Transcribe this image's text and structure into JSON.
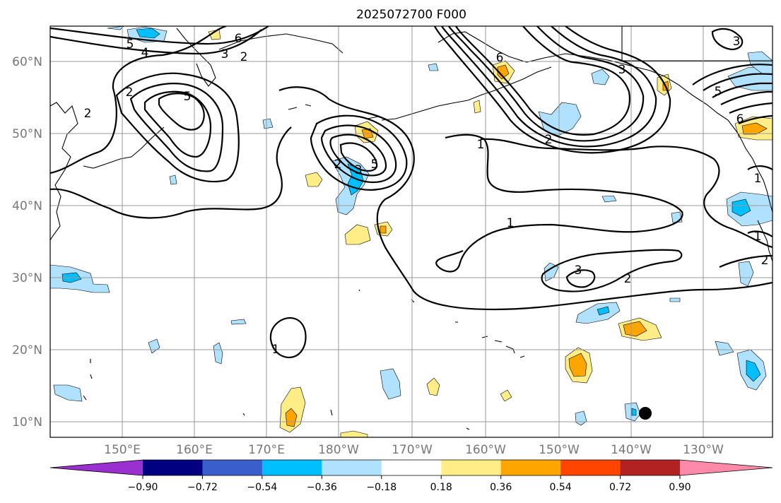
{
  "title": "2025072700 F000",
  "colors": {
    "cb_colors": [
      "#9b30d0",
      "#000080",
      "#3a5fcd",
      "#00bfff",
      "#b0e2ff",
      "#ffffff",
      "#ffee88",
      "#ffa500",
      "#ff4500",
      "#b22222",
      "#ff89a8"
    ],
    "neg_light": "#b0e2ff",
    "neg_mid": "#00bfff",
    "pos_light": "#ffee88",
    "pos_mid": "#ffa500"
  },
  "x_ticks": [
    "150°E",
    "160°E",
    "170°E",
    "180°W",
    "170°W",
    "160°W",
    "150°W",
    "140°W",
    "130°W"
  ],
  "y_ticks": [
    "60°N",
    "50°N",
    "40°N",
    "30°N",
    "20°N",
    "10°N"
  ],
  "colorbar": {
    "levels": [
      -0.9,
      -0.72,
      -0.54,
      -0.36,
      -0.18,
      0.18,
      0.36,
      0.54,
      0.72,
      0.9
    ],
    "labels": [
      "−0.90",
      "−0.72",
      "−0.54",
      "−0.36",
      "−0.18",
      "0.18",
      "0.36",
      "0.54",
      "0.72",
      "0.90"
    ]
  },
  "contour_labels": [
    "5",
    "4",
    "3",
    "6",
    "2",
    "2",
    "2",
    "5",
    "2",
    "3",
    "5",
    "1",
    "6",
    "2",
    "3",
    "1",
    "3",
    "2",
    "1",
    "5",
    "6",
    "3",
    "1",
    "2",
    "1"
  ],
  "marker": {
    "name": "black-dot",
    "lon": -137.5,
    "lat": 11.5
  }
}
